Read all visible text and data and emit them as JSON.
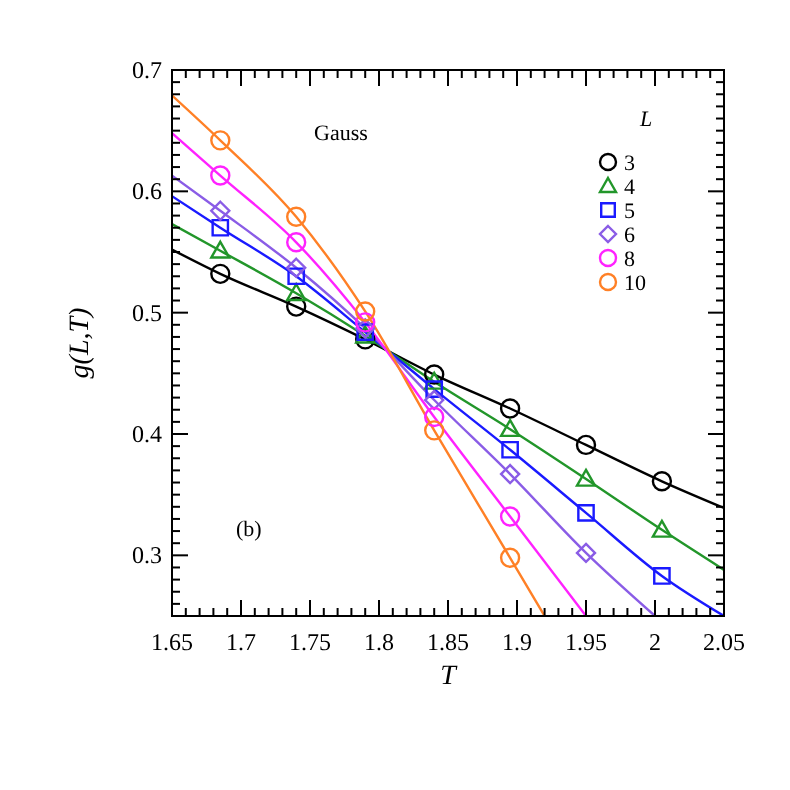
{
  "chart_data": {
    "type": "scatter",
    "xlabel": "T",
    "ylabel": "g(L,T)",
    "legend_title": "L",
    "legend": "top right",
    "annotations": [
      "Gauss",
      "(b)"
    ],
    "xlim": [
      1.65,
      2.05
    ],
    "ylim": [
      0.25,
      0.7
    ],
    "xticks": [
      1.65,
      {
        "value": 1.66,
        "label": null
      },
      {
        "value": 1.67,
        "label": null
      },
      {
        "value": 1.68,
        "label": null
      },
      {
        "value": 1.69,
        "label": null
      },
      1.7,
      {
        "value": 1.71,
        "label": null
      },
      {
        "value": 1.72,
        "label": null
      },
      {
        "value": 1.73,
        "label": null
      },
      {
        "value": 1.74,
        "label": null
      },
      1.75,
      {
        "value": 1.76,
        "label": null
      },
      {
        "value": 1.77,
        "label": null
      },
      {
        "value": 1.78,
        "label": null
      },
      {
        "value": 1.79,
        "label": null
      },
      1.8,
      {
        "value": 1.81,
        "label": null
      },
      {
        "value": 1.82,
        "label": null
      },
      {
        "value": 1.83,
        "label": null
      },
      {
        "value": 1.84,
        "label": null
      },
      1.85,
      {
        "value": 1.86,
        "label": null
      },
      {
        "value": 1.87,
        "label": null
      },
      {
        "value": 1.88,
        "label": null
      },
      {
        "value": 1.89,
        "label": null
      },
      1.9,
      {
        "value": 1.91,
        "label": null
      },
      {
        "value": 1.92,
        "label": null
      },
      {
        "value": 1.93,
        "label": null
      },
      {
        "value": 1.94,
        "label": null
      },
      1.95,
      {
        "value": 1.96,
        "label": null
      },
      {
        "value": 1.97,
        "label": null
      },
      {
        "value": 1.98,
        "label": null
      },
      {
        "value": 1.99,
        "label": null
      },
      2,
      {
        "value": 2.01,
        "label": null
      },
      {
        "value": 2.02,
        "label": null
      },
      {
        "value": 2.03,
        "label": null
      },
      {
        "value": 2.04,
        "label": null
      },
      2.05
    ],
    "yticks": [
      {
        "value": 0.26,
        "label": null
      },
      {
        "value": 0.27,
        "label": null
      },
      {
        "value": 0.28,
        "label": null
      },
      {
        "value": 0.29,
        "label": null
      },
      0.3,
      {
        "value": 0.31,
        "label": null
      },
      {
        "value": 0.32,
        "label": null
      },
      {
        "value": 0.33,
        "label": null
      },
      {
        "value": 0.34,
        "label": null
      },
      {
        "value": 0.35,
        "label": null
      },
      {
        "value": 0.36,
        "label": null
      },
      {
        "value": 0.37,
        "label": null
      },
      {
        "value": 0.38,
        "label": null
      },
      {
        "value": 0.39,
        "label": null
      },
      0.4,
      {
        "value": 0.41,
        "label": null
      },
      {
        "value": 0.42,
        "label": null
      },
      {
        "value": 0.43,
        "label": null
      },
      {
        "value": 0.44,
        "label": null
      },
      {
        "value": 0.45,
        "label": null
      },
      {
        "value": 0.46,
        "label": null
      },
      {
        "value": 0.47,
        "label": null
      },
      {
        "value": 0.48,
        "label": null
      },
      {
        "value": 0.49,
        "label": null
      },
      0.5,
      {
        "value": 0.51,
        "label": null
      },
      {
        "value": 0.52,
        "label": null
      },
      {
        "value": 0.53,
        "label": null
      },
      {
        "value": 0.54,
        "label": null
      },
      {
        "value": 0.55,
        "label": null
      },
      {
        "value": 0.56,
        "label": null
      },
      {
        "value": 0.57,
        "label": null
      },
      {
        "value": 0.58,
        "label": null
      },
      {
        "value": 0.59,
        "label": null
      },
      0.6,
      {
        "value": 0.61,
        "label": null
      },
      {
        "value": 0.62,
        "label": null
      },
      {
        "value": 0.63,
        "label": null
      },
      {
        "value": 0.64,
        "label": null
      },
      {
        "value": 0.65,
        "label": null
      },
      {
        "value": 0.66,
        "label": null
      },
      {
        "value": 0.67,
        "label": null
      },
      {
        "value": 0.68,
        "label": null
      },
      {
        "value": 0.69,
        "label": null
      },
      0.7
    ],
    "series": [
      {
        "type": "line",
        "color": "#000000",
        "x": [
          1.65,
          1.685,
          1.74,
          1.79,
          1.84,
          1.895,
          1.95,
          2.005,
          2.05
        ],
        "values": [
          0.552,
          0.532,
          0.505,
          0.478,
          0.449,
          0.421,
          0.391,
          0.361,
          0.339
        ]
      },
      {
        "type": "line",
        "color": "#22962a",
        "x": [
          1.65,
          1.685,
          1.74,
          1.79,
          1.84,
          1.895,
          1.95,
          2.005,
          2.05
        ],
        "values": [
          0.573,
          0.551,
          0.516,
          0.481,
          0.443,
          0.404,
          0.363,
          0.321,
          0.288
        ]
      },
      {
        "type": "line",
        "color": "#1a1aff",
        "x": [
          1.65,
          1.685,
          1.74,
          1.79,
          1.84,
          1.895,
          1.95,
          2.005,
          2.05
        ],
        "values": [
          0.596,
          0.57,
          0.53,
          0.484,
          0.437,
          0.387,
          0.335,
          0.283,
          0.25
        ]
      },
      {
        "type": "line",
        "color": "#8a5ce6",
        "x": [
          1.65,
          1.685,
          1.74,
          1.79,
          1.84,
          1.895,
          1.95,
          2.0
        ],
        "values": [
          0.613,
          0.584,
          0.537,
          0.487,
          0.428,
          0.367,
          0.302,
          0.25
        ]
      },
      {
        "type": "line",
        "color": "#ff22ff",
        "x": [
          1.65,
          1.685,
          1.74,
          1.79,
          1.84,
          1.895,
          1.95
        ],
        "values": [
          0.648,
          0.613,
          0.558,
          0.492,
          0.414,
          0.332,
          0.25
        ]
      },
      {
        "type": "line",
        "color": "#ff8026",
        "x": [
          1.65,
          1.685,
          1.74,
          1.79,
          1.84,
          1.895,
          1.92
        ],
        "values": [
          0.679,
          0.642,
          0.579,
          0.501,
          0.403,
          0.298,
          0.25
        ]
      },
      {
        "name": "3",
        "marker": "circle",
        "color": "#000000",
        "x": [
          1.685,
          1.74,
          1.79,
          1.84,
          1.895,
          1.95,
          2.005
        ],
        "values": [
          0.532,
          0.505,
          0.478,
          0.449,
          0.421,
          0.391,
          0.361
        ]
      },
      {
        "name": "4",
        "marker": "triangle",
        "color": "#22962a",
        "x": [
          1.685,
          1.74,
          1.79,
          1.84,
          1.895,
          1.95,
          2.005
        ],
        "values": [
          0.551,
          0.516,
          0.481,
          0.443,
          0.404,
          0.363,
          0.321
        ]
      },
      {
        "name": "5",
        "marker": "square",
        "color": "#1a1aff",
        "x": [
          1.685,
          1.74,
          1.79,
          1.84,
          1.895,
          1.95,
          2.005
        ],
        "values": [
          0.57,
          0.53,
          0.484,
          0.437,
          0.387,
          0.335,
          0.283
        ]
      },
      {
        "name": "6",
        "marker": "diamond",
        "color": "#8a5ce6",
        "x": [
          1.685,
          1.74,
          1.79,
          1.84,
          1.895,
          1.95
        ],
        "values": [
          0.584,
          0.537,
          0.487,
          0.428,
          0.367,
          0.302
        ]
      },
      {
        "name": "8",
        "marker": "circle",
        "color": "#ff22ff",
        "x": [
          1.685,
          1.74,
          1.79,
          1.84,
          1.895
        ],
        "values": [
          0.613,
          0.558,
          0.492,
          0.414,
          0.332
        ]
      },
      {
        "name": "10",
        "marker": "circle",
        "color": "#ff8026",
        "x": [
          1.685,
          1.74,
          1.79,
          1.84,
          1.895
        ],
        "values": [
          0.642,
          0.579,
          0.501,
          0.403,
          0.298
        ]
      }
    ]
  }
}
